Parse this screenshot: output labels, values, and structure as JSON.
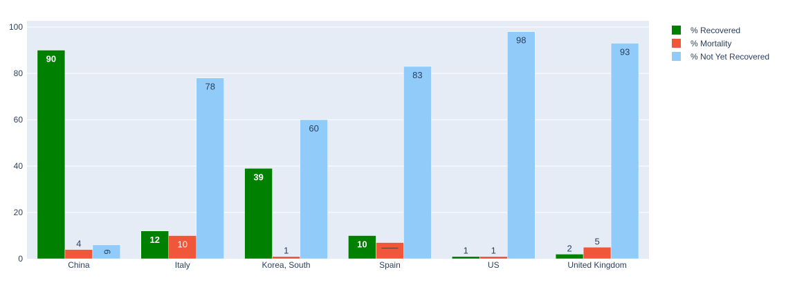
{
  "chart_data": {
    "type": "bar",
    "categories": [
      "China",
      "Italy",
      "Korea, South",
      "Spain",
      "US",
      "United Kingdom"
    ],
    "series": [
      {
        "name": "% Recovered",
        "color": "#008000",
        "values": [
          90,
          12,
          39,
          10,
          1,
          2
        ],
        "labels": [
          "90",
          "12",
          "39",
          "10",
          "1",
          "2"
        ]
      },
      {
        "name": "% Mortality",
        "color": "#f0573a",
        "values": [
          4,
          10,
          1,
          7,
          1,
          5
        ],
        "labels": [
          "4",
          "10",
          "1",
          "",
          "1",
          "5"
        ]
      },
      {
        "name": "% Not Yet Recovered",
        "color": "#90cbf9",
        "values": [
          6,
          78,
          60,
          83,
          98,
          93
        ],
        "labels": [
          "6",
          "78",
          "60",
          "83",
          "98",
          "93"
        ]
      }
    ],
    "ylim": [
      0,
      100
    ],
    "yticks": [
      0,
      20,
      40,
      60,
      80,
      100
    ],
    "grid": true,
    "legend_position": "top-right",
    "plot_bgcolor": "#e5ecf6",
    "tick_color": "#2a3f5f"
  }
}
